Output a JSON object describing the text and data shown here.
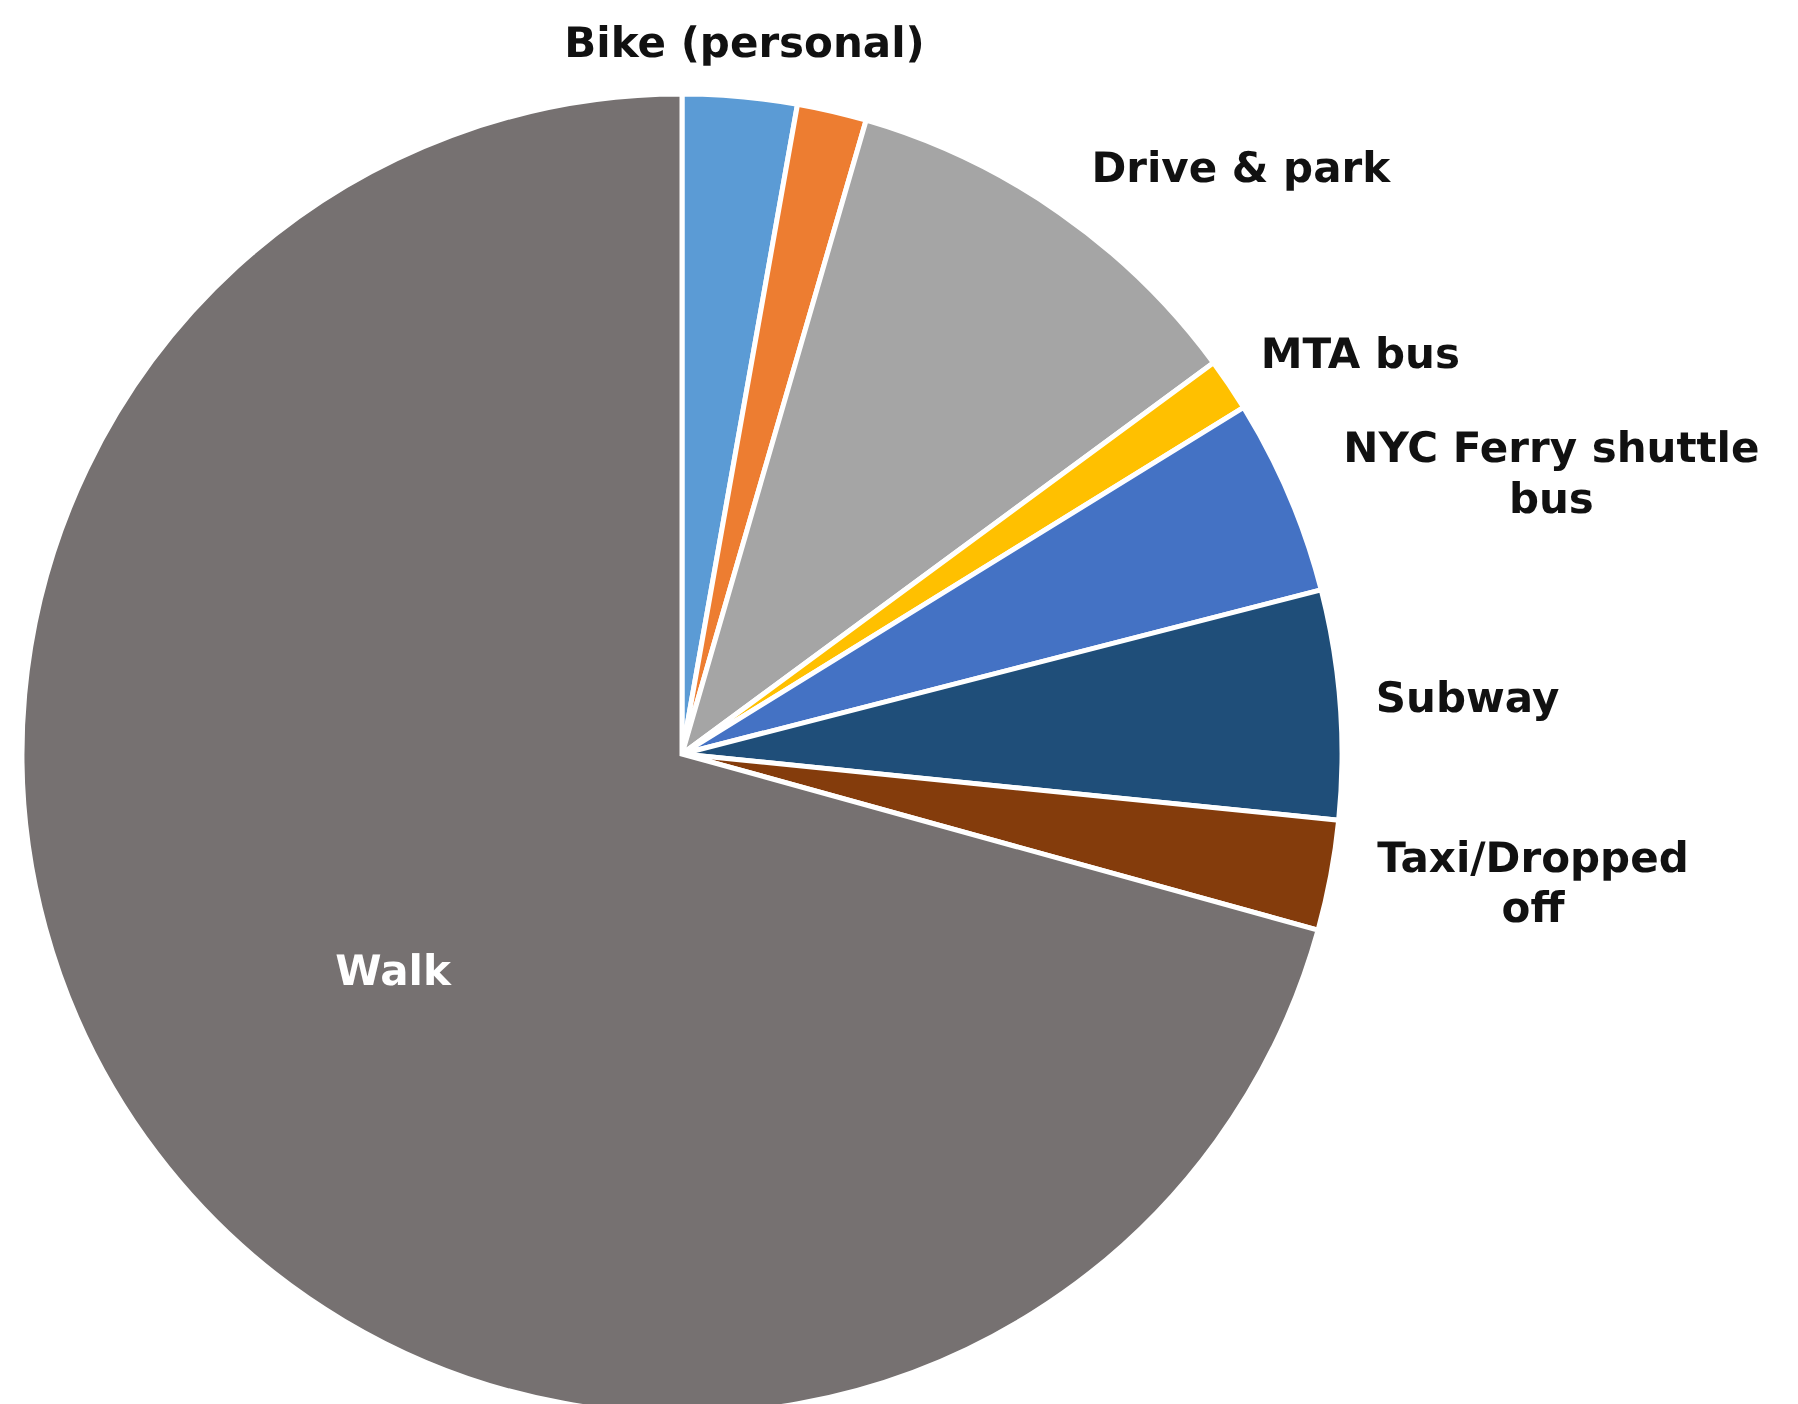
{
  "chart_data": {
    "type": "pie",
    "categories": [
      "Bike (personal)",
      null,
      "Drive & park",
      "MTA bus",
      "NYC Ferry shuttle bus",
      "Subway",
      "Taxi/Dropped off",
      "Walk"
    ],
    "values": [
      2.8,
      1.7,
      10.4,
      1.3,
      4.8,
      5.6,
      2.7,
      70.7
    ],
    "colors": [
      "#5b9bd5",
      "#ed7d31",
      "#a5a5a5",
      "#ffc000",
      "#4472c4",
      "#1f4e79",
      "#843c0c",
      "#767171"
    ]
  }
}
